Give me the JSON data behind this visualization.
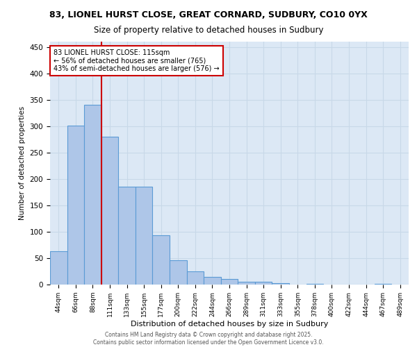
{
  "title_line1": "83, LIONEL HURST CLOSE, GREAT CORNARD, SUDBURY, CO10 0YX",
  "title_line2": "Size of property relative to detached houses in Sudbury",
  "xlabel": "Distribution of detached houses by size in Sudbury",
  "ylabel": "Number of detached properties",
  "categories": [
    "44sqm",
    "66sqm",
    "88sqm",
    "111sqm",
    "133sqm",
    "155sqm",
    "177sqm",
    "200sqm",
    "222sqm",
    "244sqm",
    "266sqm",
    "289sqm",
    "311sqm",
    "333sqm",
    "355sqm",
    "378sqm",
    "400sqm",
    "422sqm",
    "444sqm",
    "467sqm",
    "489sqm"
  ],
  "values": [
    63,
    301,
    340,
    280,
    185,
    185,
    93,
    46,
    25,
    14,
    10,
    5,
    5,
    3,
    0,
    1,
    0,
    0,
    0,
    1,
    0
  ],
  "bar_color": "#aec6e8",
  "bar_edge_color": "#5b9bd5",
  "annotation_text": "83 LIONEL HURST CLOSE: 115sqm\n← 56% of detached houses are smaller (765)\n43% of semi-detached houses are larger (576) →",
  "annotation_box_color": "#ffffff",
  "annotation_box_edge_color": "#cc0000",
  "annotation_text_color": "#000000",
  "vline_color": "#cc0000",
  "vline_x": 3.0,
  "grid_color": "#c8d8e8",
  "background_color": "#dce8f5",
  "ylim": [
    0,
    460
  ],
  "yticks": [
    0,
    50,
    100,
    150,
    200,
    250,
    300,
    350,
    400,
    450
  ],
  "footer_line1": "Contains HM Land Registry data © Crown copyright and database right 2025.",
  "footer_line2": "Contains public sector information licensed under the Open Government Licence v3.0."
}
